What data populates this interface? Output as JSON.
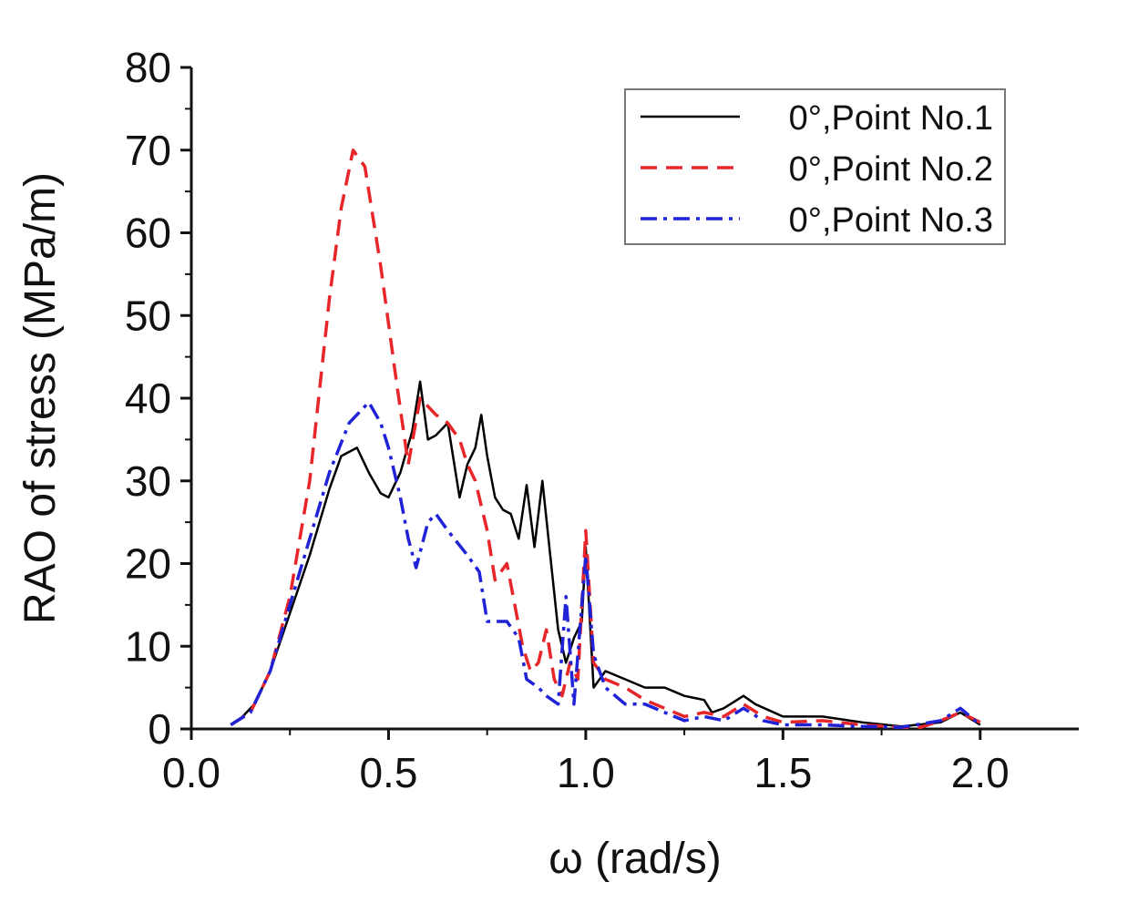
{
  "chart_data": {
    "type": "line",
    "xlabel": "ω (rad/s)",
    "ylabel": "RAO of stress (MPa/m)",
    "xlim": [
      0.0,
      2.25
    ],
    "ylim": [
      0,
      80
    ],
    "xticks": [
      "0.0",
      "0.5",
      "1.0",
      "1.5",
      "2.0"
    ],
    "yticks": [
      "0",
      "10",
      "20",
      "30",
      "40",
      "50",
      "60",
      "70",
      "80"
    ],
    "grid": false,
    "legend_position": "top-right",
    "series": [
      {
        "name": "0°,Point No.1",
        "color": "#000000",
        "dash": "solid",
        "points": [
          [
            0.1,
            0.5
          ],
          [
            0.13,
            1.5
          ],
          [
            0.16,
            3
          ],
          [
            0.2,
            7
          ],
          [
            0.25,
            14
          ],
          [
            0.3,
            21
          ],
          [
            0.35,
            29
          ],
          [
            0.38,
            33
          ],
          [
            0.42,
            34
          ],
          [
            0.45,
            31
          ],
          [
            0.48,
            28.5
          ],
          [
            0.5,
            28
          ],
          [
            0.53,
            31
          ],
          [
            0.56,
            36
          ],
          [
            0.58,
            42
          ],
          [
            0.6,
            35
          ],
          [
            0.62,
            35.5
          ],
          [
            0.65,
            37
          ],
          [
            0.68,
            28
          ],
          [
            0.7,
            32
          ],
          [
            0.72,
            34
          ],
          [
            0.735,
            38
          ],
          [
            0.75,
            33
          ],
          [
            0.77,
            28
          ],
          [
            0.79,
            26.5
          ],
          [
            0.81,
            26
          ],
          [
            0.83,
            23
          ],
          [
            0.85,
            29.5
          ],
          [
            0.87,
            22
          ],
          [
            0.89,
            30
          ],
          [
            0.91,
            21
          ],
          [
            0.93,
            12
          ],
          [
            0.95,
            8
          ],
          [
            0.97,
            11
          ],
          [
            0.99,
            13
          ],
          [
            1.0,
            22
          ],
          [
            1.02,
            5
          ],
          [
            1.05,
            7
          ],
          [
            1.1,
            6
          ],
          [
            1.15,
            5
          ],
          [
            1.2,
            5
          ],
          [
            1.25,
            4
          ],
          [
            1.3,
            3.5
          ],
          [
            1.32,
            2
          ],
          [
            1.35,
            2.5
          ],
          [
            1.4,
            4
          ],
          [
            1.43,
            3
          ],
          [
            1.5,
            1.5
          ],
          [
            1.6,
            1.5
          ],
          [
            1.7,
            0.8
          ],
          [
            1.8,
            0.3
          ],
          [
            1.9,
            0.8
          ],
          [
            1.95,
            2
          ],
          [
            2.0,
            0.5
          ]
        ]
      },
      {
        "name": "0°,Point No.2",
        "color": "#e8262a",
        "dash": "dashed",
        "points": [
          [
            0.1,
            0.5
          ],
          [
            0.15,
            2
          ],
          [
            0.2,
            7
          ],
          [
            0.25,
            16
          ],
          [
            0.3,
            30
          ],
          [
            0.35,
            52
          ],
          [
            0.38,
            63
          ],
          [
            0.41,
            70
          ],
          [
            0.44,
            68
          ],
          [
            0.48,
            56
          ],
          [
            0.52,
            42
          ],
          [
            0.55,
            32
          ],
          [
            0.58,
            40
          ],
          [
            0.62,
            38
          ],
          [
            0.65,
            37
          ],
          [
            0.68,
            35
          ],
          [
            0.7,
            32
          ],
          [
            0.72,
            30
          ],
          [
            0.75,
            24
          ],
          [
            0.77,
            18
          ],
          [
            0.8,
            20
          ],
          [
            0.82,
            15
          ],
          [
            0.84,
            10
          ],
          [
            0.86,
            7
          ],
          [
            0.88,
            8
          ],
          [
            0.9,
            12
          ],
          [
            0.92,
            6
          ],
          [
            0.94,
            4
          ],
          [
            0.96,
            8
          ],
          [
            0.98,
            6
          ],
          [
            1.0,
            24
          ],
          [
            1.02,
            8
          ],
          [
            1.05,
            6
          ],
          [
            1.1,
            5
          ],
          [
            1.15,
            3.5
          ],
          [
            1.2,
            2.5
          ],
          [
            1.25,
            1.5
          ],
          [
            1.3,
            2
          ],
          [
            1.35,
            1.5
          ],
          [
            1.4,
            3
          ],
          [
            1.45,
            1.5
          ],
          [
            1.5,
            0.8
          ],
          [
            1.6,
            1
          ],
          [
            1.7,
            0.5
          ],
          [
            1.8,
            0.2
          ],
          [
            1.85,
            0.2
          ],
          [
            1.9,
            1
          ],
          [
            1.95,
            2
          ],
          [
            2.0,
            0.8
          ]
        ]
      },
      {
        "name": "0°,Point No.3",
        "color": "#1f22d6",
        "dash": "dashdot",
        "points": [
          [
            0.1,
            0.5
          ],
          [
            0.15,
            2
          ],
          [
            0.2,
            7
          ],
          [
            0.25,
            15
          ],
          [
            0.3,
            23
          ],
          [
            0.35,
            31
          ],
          [
            0.4,
            37
          ],
          [
            0.45,
            39.5
          ],
          [
            0.48,
            37
          ],
          [
            0.5,
            34
          ],
          [
            0.53,
            28
          ],
          [
            0.55,
            23
          ],
          [
            0.57,
            19.5
          ],
          [
            0.6,
            25
          ],
          [
            0.62,
            26
          ],
          [
            0.65,
            24
          ],
          [
            0.7,
            21
          ],
          [
            0.73,
            19
          ],
          [
            0.75,
            13
          ],
          [
            0.8,
            13
          ],
          [
            0.83,
            11
          ],
          [
            0.85,
            6
          ],
          [
            0.88,
            5
          ],
          [
            0.9,
            4
          ],
          [
            0.93,
            3
          ],
          [
            0.95,
            16
          ],
          [
            0.97,
            3
          ],
          [
            1.0,
            21
          ],
          [
            1.02,
            9
          ],
          [
            1.05,
            5
          ],
          [
            1.1,
            3
          ],
          [
            1.15,
            3
          ],
          [
            1.2,
            2
          ],
          [
            1.25,
            1
          ],
          [
            1.3,
            1.5
          ],
          [
            1.35,
            1
          ],
          [
            1.4,
            2.5
          ],
          [
            1.45,
            1
          ],
          [
            1.5,
            0.5
          ],
          [
            1.6,
            0.5
          ],
          [
            1.7,
            0.3
          ],
          [
            1.8,
            0.2
          ],
          [
            1.9,
            1
          ],
          [
            1.95,
            2.5
          ],
          [
            2.0,
            0.5
          ]
        ]
      }
    ]
  }
}
